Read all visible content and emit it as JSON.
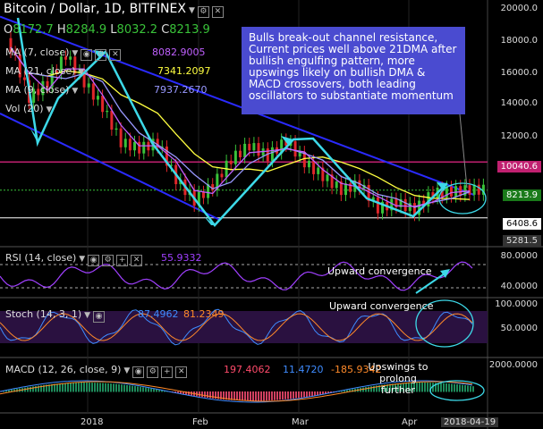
{
  "header": {
    "title": "Bitcoin / Dollar, 1D, BITFINEX",
    "open_label": "O",
    "open": "8172.7",
    "high_label": "H",
    "high": "8284.9",
    "low_label": "L",
    "low": "8032.2",
    "close_label": "C",
    "close": "8213.9"
  },
  "indicators": [
    {
      "label": "MA (7, close)",
      "value": "8082.9005",
      "color": "#c060ff"
    },
    {
      "label": "MA (21, close)",
      "value": "7341.2097",
      "color": "#ffff40"
    },
    {
      "label": "MA (9, close)",
      "value": "7937.2670",
      "color": "#9999ff"
    },
    {
      "label": "Vol (20)",
      "value": "",
      "color": "#ddd"
    }
  ],
  "note": "Bulls break-out channel resistance, Current prices well above 21DMA after bullish engulfing pattern, more upswings likely on bullish DMA & MACD crossovers, both leading oscillators to substantiate momentum",
  "price_axis": [
    "20000.0",
    "18000.0",
    "16000.0",
    "14000.0",
    "12000.0"
  ],
  "badges": {
    "resistance": "10040.6",
    "last": "8213.9",
    "support": "6408.6",
    "low": "5281.5"
  },
  "rsi": {
    "label": "RSI (14, close)",
    "value": "55.9332",
    "axis": [
      "80.0000",
      "40.0000"
    ],
    "annotation": "Upward convergence"
  },
  "stoch": {
    "label": "Stoch (14, 3, 1)",
    "k": "87.4962",
    "d": "81.2349",
    "axis": [
      "100.0000",
      "50.0000"
    ],
    "annotation": "Upward convergence"
  },
  "macd": {
    "label": "MACD (12, 26, close, 9)",
    "hist": "197.4062",
    "macd": "11.4720",
    "signal": "-185.9342",
    "axis": [
      "2000.0000"
    ],
    "annotation": "Upswings to prolong further"
  },
  "x_ticks": [
    "2018",
    "Feb",
    "Mar",
    "Apr",
    "2018-04-19"
  ],
  "colors": {
    "bull": "#39c239",
    "bear": "#e0262a",
    "arrow": "#3dd9e8",
    "channel": "#2a2aff",
    "ma21": "#ffff40",
    "ma7": "#c060ff",
    "ma9": "#9999ff",
    "note_bg": "#4a4bd0",
    "resistance": "#c02070",
    "support": "#ffffff"
  },
  "chart_data": {
    "type": "candlestick",
    "title": "Bitcoin / Dollar, 1D, BITFINEX",
    "x": [
      "2017-12-20",
      "2017-12-27",
      "2018-01-03",
      "2018-01-07",
      "2018-01-10",
      "2018-01-14",
      "2018-01-17",
      "2018-01-22",
      "2018-01-28",
      "2018-02-02",
      "2018-02-06",
      "2018-02-10",
      "2018-02-16",
      "2018-02-20",
      "2018-02-26",
      "2018-03-05",
      "2018-03-08",
      "2018-03-12",
      "2018-03-18",
      "2018-03-24",
      "2018-03-30",
      "2018-04-03",
      "2018-04-07",
      "2018-04-12",
      "2018-04-16",
      "2018-04-19"
    ],
    "close": [
      17500,
      14200,
      15200,
      17000,
      15200,
      13600,
      11300,
      10900,
      11300,
      8900,
      7500,
      8500,
      10200,
      11100,
      10400,
      11400,
      10000,
      9100,
      8200,
      8600,
      7000,
      7400,
      6900,
      8000,
      8100,
      8214
    ],
    "ylim": [
      5000,
      20000
    ],
    "series": [
      {
        "name": "MA (7, close)",
        "last": 8082.9005
      },
      {
        "name": "MA (21, close)",
        "last": 7341.2097
      },
      {
        "name": "MA (9, close)",
        "last": 7937.267
      }
    ]
  }
}
